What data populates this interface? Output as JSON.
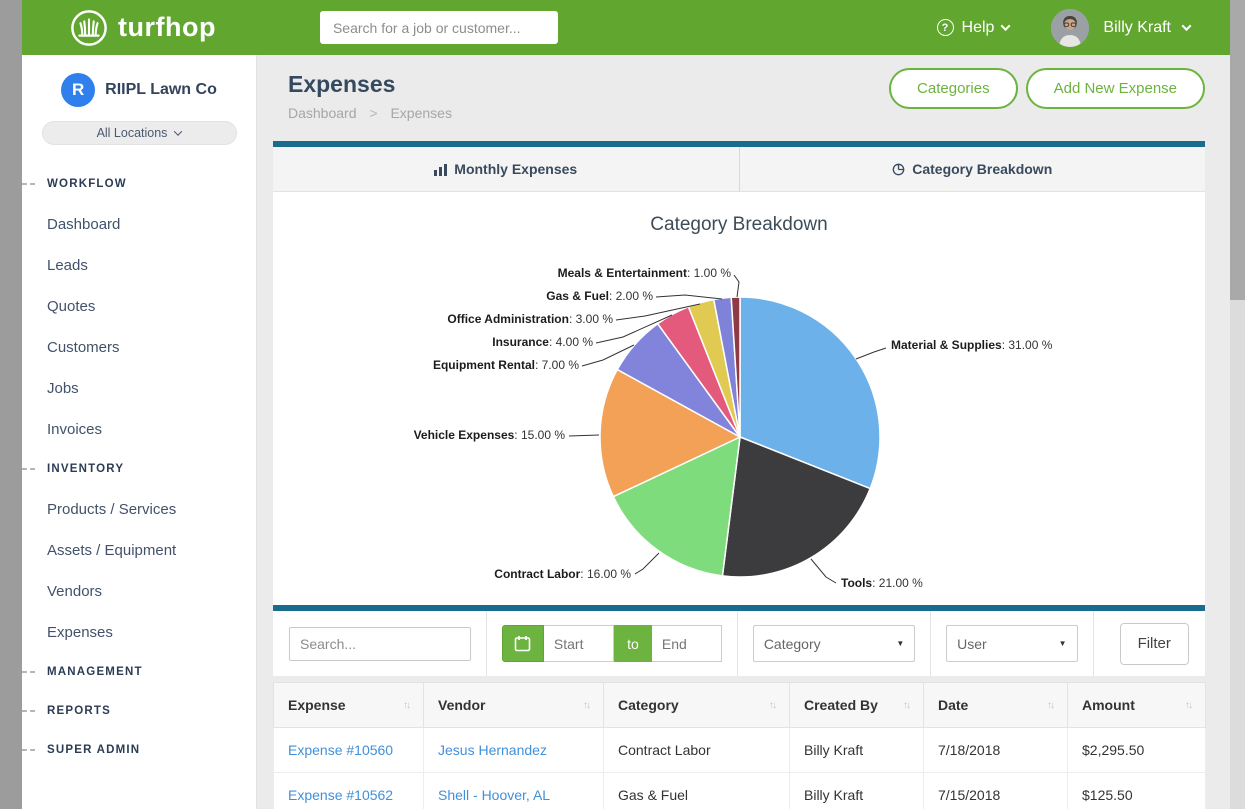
{
  "header": {
    "brand": "turfhop",
    "search_placeholder": "Search for a job or customer...",
    "help_label": "Help",
    "user_name": "Billy Kraft"
  },
  "sidebar": {
    "company_initial": "R",
    "company_name": "RIIPL Lawn Co",
    "location_selector": "All Locations",
    "sections": [
      {
        "label": "WORKFLOW",
        "items": [
          "Dashboard",
          "Leads",
          "Quotes",
          "Customers",
          "Jobs",
          "Invoices"
        ]
      },
      {
        "label": "INVENTORY",
        "items": [
          "Products / Services",
          "Assets / Equipment",
          "Vendors",
          "Expenses"
        ]
      },
      {
        "label": "MANAGEMENT",
        "items": []
      },
      {
        "label": "REPORTS",
        "items": []
      },
      {
        "label": "SUPER ADMIN",
        "items": []
      }
    ]
  },
  "page": {
    "title": "Expenses",
    "breadcrumb": [
      "Dashboard",
      "Expenses"
    ],
    "breadcrumb_separator": ">",
    "buttons": [
      "Categories",
      "Add New Expense"
    ],
    "tabs": [
      {
        "label": "Monthly Expenses",
        "icon": "bar-chart-icon",
        "active": false
      },
      {
        "label": "Category Breakdown",
        "icon": "pie-chart-icon",
        "active": true
      }
    ]
  },
  "chart_data": {
    "type": "pie",
    "title": "Category Breakdown",
    "start_angle": "top",
    "direction": "clockwise",
    "value_format": "percent_2dp",
    "slices": [
      {
        "label": "Material & Supplies",
        "value": 31.0,
        "color": "#6cb1e9"
      },
      {
        "label": "Tools",
        "value": 21.0,
        "color": "#3c3c3e"
      },
      {
        "label": "Contract Labor",
        "value": 16.0,
        "color": "#7edc7c"
      },
      {
        "label": "Vehicle Expenses",
        "value": 15.0,
        "color": "#f2a156"
      },
      {
        "label": "Equipment Rental",
        "value": 7.0,
        "color": "#8184da"
      },
      {
        "label": "Insurance",
        "value": 4.0,
        "color": "#e35a7c"
      },
      {
        "label": "Office Administration",
        "value": 3.0,
        "color": "#e0ca52"
      },
      {
        "label": "Gas & Fuel",
        "value": 2.0,
        "color": "#7e82d8"
      },
      {
        "label": "Meals & Entertainment",
        "value": 1.0,
        "color": "#8e3b46"
      }
    ]
  },
  "filters": {
    "search_placeholder": "Search...",
    "date_start": "Start",
    "date_to": "to",
    "date_end": "End",
    "category_select": "Category",
    "user_select": "User",
    "filter_button": "Filter"
  },
  "table": {
    "columns": [
      "Expense",
      "Vendor",
      "Category",
      "Created By",
      "Date",
      "Amount"
    ],
    "link_columns": [
      0,
      1
    ],
    "rows": [
      [
        "Expense #10560",
        "Jesus Hernandez",
        "Contract Labor",
        "Billy Kraft",
        "7/18/2018",
        "$2,295.50"
      ],
      [
        "Expense #10562",
        "Shell - Hoover, AL",
        "Gas & Fuel",
        "Billy Kraft",
        "7/15/2018",
        "$125.50"
      ]
    ]
  },
  "colors": {
    "header_green": "#61a72f",
    "accent_green": "#6db33f",
    "teal_bar": "#1a6c8c",
    "link_blue": "#4190da",
    "title_text": "#35495f"
  }
}
